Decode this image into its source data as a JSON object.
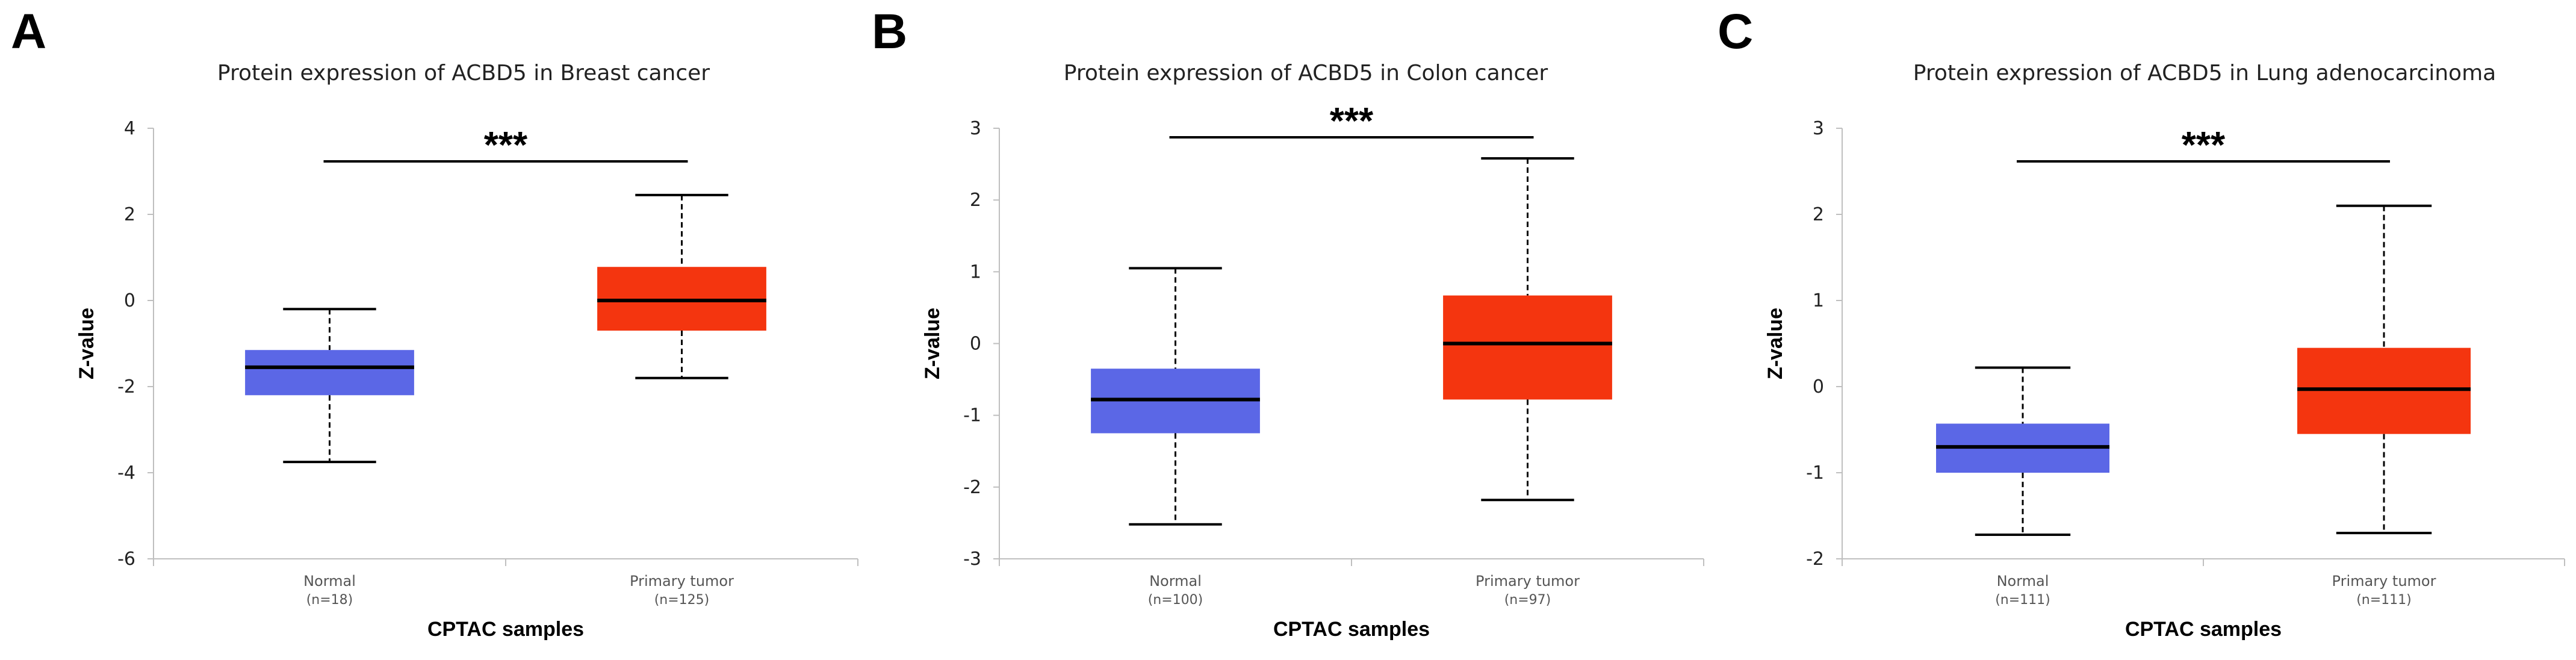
{
  "chart_data": [
    {
      "type": "boxplot",
      "panel_label": "A",
      "title": "Protein expression of ACBD5 in Breast cancer",
      "xlabel": "CPTAC samples",
      "ylabel": "Z-value",
      "ylim": [
        -6,
        4
      ],
      "yticks": [
        4,
        2,
        0,
        -2,
        -4,
        -6
      ],
      "significance": "***",
      "groups": [
        {
          "name": "Normal",
          "n_label": "(n=18)",
          "color": "#5b67e6",
          "min": -3.75,
          "q1": -2.2,
          "median": -1.55,
          "q3": -1.15,
          "max": -0.2
        },
        {
          "name": "Primary tumor",
          "n_label": "(n=125)",
          "color": "#f4350f",
          "min": -1.8,
          "q1": -0.7,
          "median": 0.0,
          "q3": 0.78,
          "max": 2.45
        }
      ]
    },
    {
      "type": "boxplot",
      "panel_label": "B",
      "title": "Protein expression of ACBD5 in Colon cancer",
      "xlabel": "CPTAC samples",
      "ylabel": "Z-value",
      "ylim": [
        -3,
        3
      ],
      "yticks": [
        3,
        2,
        1,
        0,
        -1,
        -2,
        -3
      ],
      "significance": "***",
      "groups": [
        {
          "name": "Normal",
          "n_label": "(n=100)",
          "color": "#5b67e6",
          "min": -2.52,
          "q1": -1.25,
          "median": -0.78,
          "q3": -0.35,
          "max": 1.05
        },
        {
          "name": "Primary tumor",
          "n_label": "(n=97)",
          "color": "#f4350f",
          "min": -2.18,
          "q1": -0.78,
          "median": 0.0,
          "q3": 0.67,
          "max": 2.58
        }
      ]
    },
    {
      "type": "boxplot",
      "panel_label": "C",
      "title": "Protein expression of ACBD5 in Lung adenocarcinoma",
      "xlabel": "CPTAC samples",
      "ylabel": "Z-value",
      "ylim": [
        -2,
        3
      ],
      "yticks": [
        3,
        2,
        1,
        0,
        -1,
        -2
      ],
      "significance": "***",
      "groups": [
        {
          "name": "Normal",
          "n_label": "(n=111)",
          "color": "#5b67e6",
          "min": -1.72,
          "q1": -1.0,
          "median": -0.7,
          "q3": -0.43,
          "max": 0.22
        },
        {
          "name": "Primary tumor",
          "n_label": "(n=111)",
          "color": "#f4350f",
          "min": -1.7,
          "q1": -0.55,
          "median": -0.03,
          "q3": 0.45,
          "max": 2.1
        }
      ]
    }
  ]
}
